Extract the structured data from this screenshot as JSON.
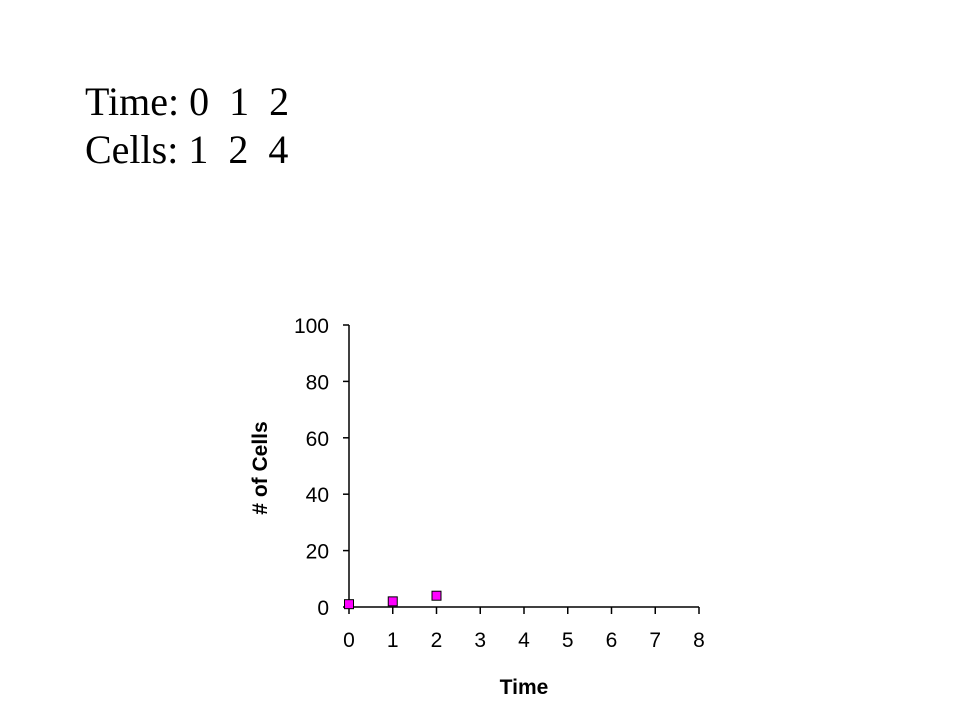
{
  "heading": {
    "time_label": "Time:",
    "time_values": [
      "0",
      "1",
      "2"
    ],
    "cells_label": "Cells:",
    "cells_values": [
      "1",
      "2",
      "4"
    ]
  },
  "chart_data": {
    "type": "scatter",
    "xlabel": "Time",
    "ylabel": "# of Cells",
    "xlim": [
      0,
      8
    ],
    "ylim": [
      0,
      100
    ],
    "x_ticks": [
      "0",
      "1",
      "2",
      "3",
      "4",
      "5",
      "6",
      "7",
      "8"
    ],
    "y_ticks": [
      "0",
      "20",
      "40",
      "60",
      "80",
      "100"
    ],
    "grid": false,
    "legend": "none",
    "marker_color": "#ff00ff",
    "series": [
      {
        "x": [
          0,
          1,
          2
        ],
        "y": [
          1,
          2,
          4
        ]
      }
    ]
  }
}
